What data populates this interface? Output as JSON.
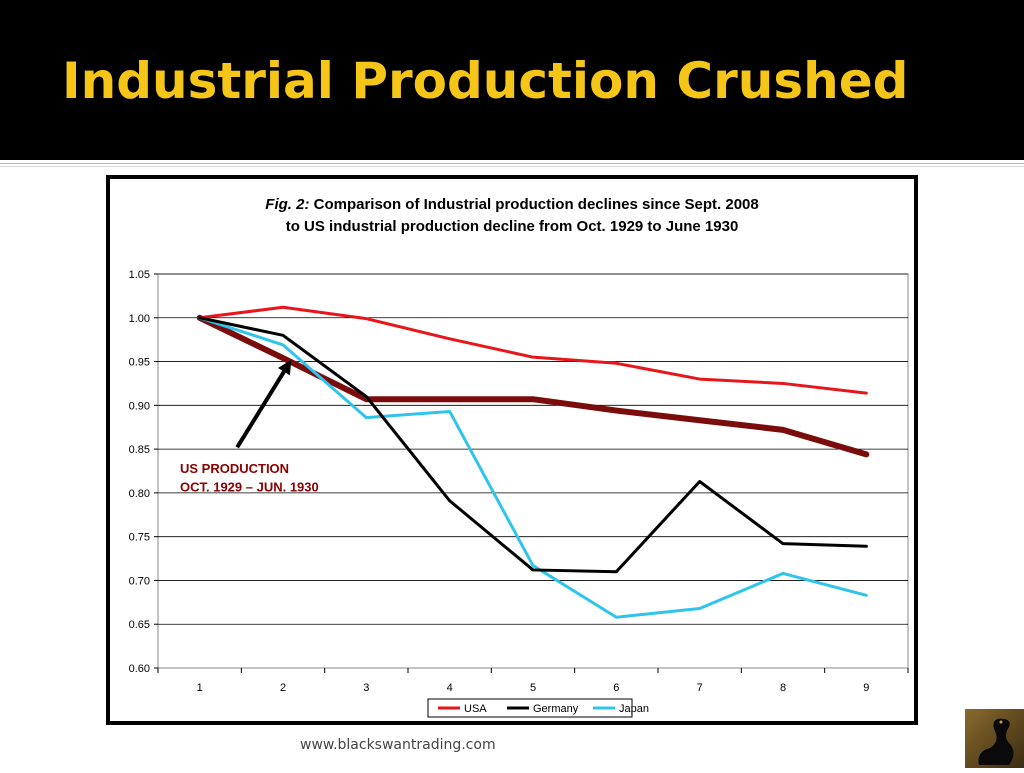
{
  "slide": {
    "title": "Industrial Production Crushed",
    "footer": "www.blackswantrading.com",
    "logo_icon": "black-swan-logo-icon"
  },
  "colors": {
    "title_bg": "#000000",
    "title_text": "#f5c518",
    "usa": "#e8161b",
    "germany": "#000000",
    "japan": "#2fc4ec",
    "us_1929": "#7a0c0c",
    "annotation": "#8b0000"
  },
  "chart_data": {
    "type": "line",
    "title_prefix": "Fig. 2:",
    "title_line1": "Comparison of Industrial production declines since Sept. 2008",
    "title_line2": "to US industrial production decline from Oct. 1929 to June 1930",
    "x": [
      1,
      2,
      3,
      4,
      5,
      6,
      7,
      8,
      9
    ],
    "x_tick_labels": [
      "1",
      "2",
      "3",
      "4",
      "5",
      "6",
      "7",
      "8",
      "9"
    ],
    "ylim": [
      0.6,
      1.05
    ],
    "y_ticks": [
      0.6,
      0.65,
      0.7,
      0.75,
      0.8,
      0.85,
      0.9,
      0.95,
      1.0,
      1.05
    ],
    "y_tick_labels": [
      "0.60",
      "0.65",
      "0.70",
      "0.75",
      "0.80",
      "0.85",
      "0.90",
      "0.95",
      "1.00",
      "1.05"
    ],
    "grid": true,
    "legend_position": "bottom-center",
    "series": [
      {
        "name": "USA",
        "color": "#e8161b",
        "values": [
          1.0,
          1.012,
          0.999,
          0.976,
          0.955,
          0.948,
          0.93,
          0.925,
          0.914
        ],
        "in_legend": true
      },
      {
        "name": "Germany",
        "color": "#000000",
        "values": [
          1.0,
          0.98,
          0.91,
          0.791,
          0.712,
          0.71,
          0.813,
          0.742,
          0.739
        ],
        "in_legend": true
      },
      {
        "name": "Japan",
        "color": "#2fc4ec",
        "values": [
          1.0,
          0.969,
          0.886,
          0.893,
          0.717,
          0.658,
          0.668,
          0.708,
          0.683
        ],
        "in_legend": true
      },
      {
        "values": [
          1.0,
          0.954,
          0.907,
          0.907,
          0.907,
          0.894,
          0.883,
          0.872,
          0.844
        ],
        "color": "#7a0c0c",
        "in_legend": false
      }
    ],
    "annotation": {
      "line1": "US PRODUCTION",
      "line2": "OCT. 1929 – JUN. 1930",
      "arrow_to": {
        "x": 2.1,
        "y": 0.952
      },
      "arrow_from": {
        "x": 1.45,
        "y": 0.852
      }
    }
  }
}
